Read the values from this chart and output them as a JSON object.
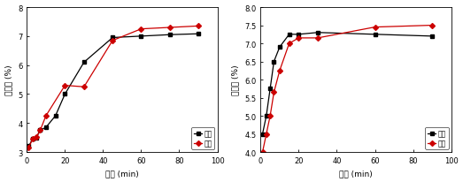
{
  "left": {
    "xlabel": "时间 (min)",
    "ylabel": "碳含量 (%)",
    "xlim": [
      0,
      100
    ],
    "ylim": [
      3.0,
      8.0
    ],
    "yticks": [
      3.0,
      4.0,
      5.0,
      6.0,
      7.0,
      8.0
    ],
    "xticks": [
      0,
      20,
      40,
      60,
      80,
      100
    ],
    "series": [
      {
        "label": "密闭",
        "color": "#000000",
        "marker": "s",
        "x": [
          1,
          3,
          5,
          7,
          10,
          15,
          20,
          30,
          45,
          60,
          75,
          90
        ],
        "y": [
          3.2,
          3.45,
          3.5,
          3.75,
          3.85,
          4.25,
          5.0,
          6.1,
          6.95,
          7.0,
          7.05,
          7.08
        ]
      },
      {
        "label": "流动",
        "color": "#cc0000",
        "marker": "D",
        "x": [
          1,
          3,
          5,
          7,
          10,
          20,
          30,
          45,
          60,
          75,
          90
        ],
        "y": [
          3.15,
          3.45,
          3.52,
          3.75,
          4.25,
          5.3,
          5.25,
          6.85,
          7.25,
          7.3,
          7.35
        ]
      }
    ],
    "legend_loc": "lower right"
  },
  "right": {
    "xlabel": "时间 (min)",
    "ylabel": "碳含量 (%)",
    "xlim": [
      0,
      100
    ],
    "ylim": [
      4.0,
      8.0
    ],
    "yticks": [
      4.0,
      4.5,
      5.0,
      5.5,
      6.0,
      6.5,
      7.0,
      7.5,
      8.0
    ],
    "xticks": [
      0,
      20,
      40,
      60,
      80,
      100
    ],
    "series": [
      {
        "label": "流动",
        "color": "#000000",
        "marker": "s",
        "x": [
          1,
          3,
          5,
          7,
          10,
          15,
          20,
          30,
          60,
          90
        ],
        "y": [
          4.5,
          5.0,
          5.75,
          6.5,
          6.9,
          7.25,
          7.25,
          7.3,
          7.25,
          7.2
        ]
      },
      {
        "label": "密闭",
        "color": "#cc0000",
        "marker": "D",
        "x": [
          1,
          3,
          5,
          7,
          10,
          15,
          20,
          30,
          60,
          90
        ],
        "y": [
          4.0,
          4.5,
          5.0,
          5.65,
          6.25,
          7.0,
          7.15,
          7.15,
          7.45,
          7.5
        ]
      }
    ],
    "legend_loc": "lower right"
  },
  "fig_width": 5.23,
  "fig_height": 2.07,
  "dpi": 100
}
